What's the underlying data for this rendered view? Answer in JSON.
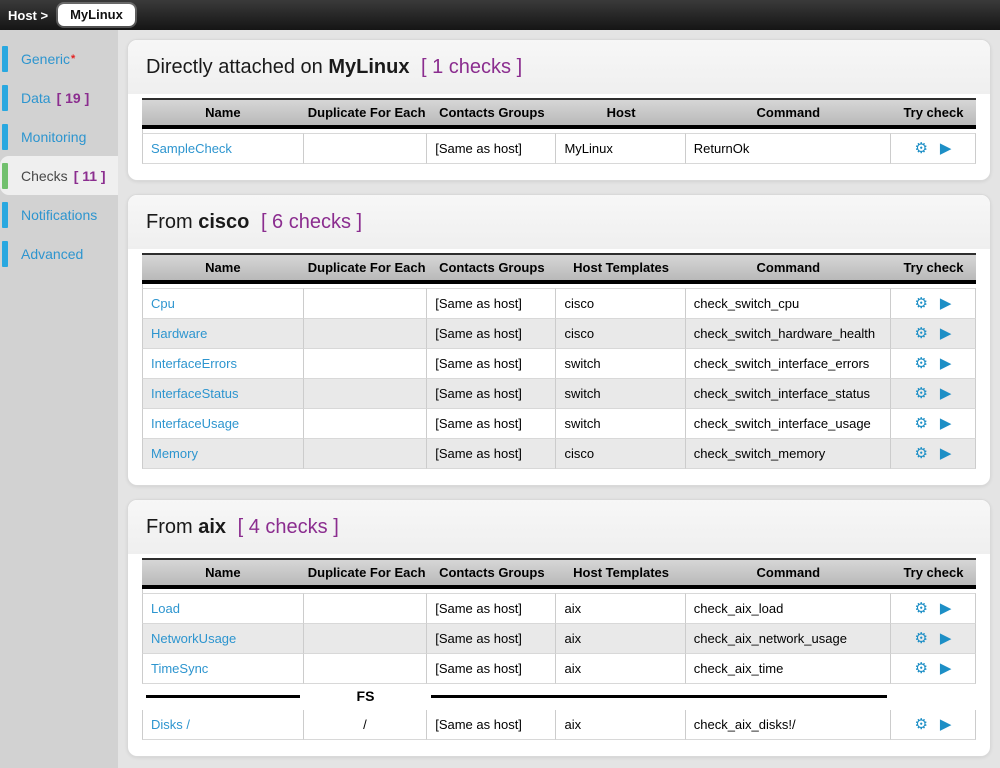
{
  "topbar": {
    "breadcrumb_label": "Host >",
    "host_name": "MyLinux"
  },
  "sidebar": {
    "items": [
      {
        "id": "generic",
        "label": "Generic",
        "marker": "*",
        "selected": false
      },
      {
        "id": "data",
        "label": "Data",
        "count": "[ 19 ]",
        "selected": false
      },
      {
        "id": "monitoring",
        "label": "Monitoring",
        "selected": false
      },
      {
        "id": "checks",
        "label": "Checks",
        "count": "[ 11 ]",
        "selected": true
      },
      {
        "id": "notifications",
        "label": "Notifications",
        "selected": false
      },
      {
        "id": "advanced",
        "label": "Advanced",
        "selected": false
      }
    ]
  },
  "sections": [
    {
      "id": "directly-attached",
      "title_prefix": "Directly attached on",
      "title_name": "MyLinux",
      "title_count": "[ 1 checks ]",
      "columns": [
        "Name",
        "Duplicate For Each",
        "Contacts Groups",
        "Host",
        "Command",
        "Try check"
      ],
      "rows": [
        {
          "name": "SampleCheck",
          "duplicate": "",
          "contacts_groups": "[Same as host]",
          "host": "MyLinux",
          "command": "ReturnOk"
        }
      ]
    },
    {
      "id": "from-cisco",
      "title_prefix": "From",
      "title_name": "cisco",
      "title_count": "[ 6 checks ]",
      "columns": [
        "Name",
        "Duplicate For Each",
        "Contacts Groups",
        "Host Templates",
        "Command",
        "Try check"
      ],
      "rows": [
        {
          "name": "Cpu",
          "duplicate": "",
          "contacts_groups": "[Same as host]",
          "host": "cisco",
          "command": "check_switch_cpu"
        },
        {
          "name": "Hardware",
          "duplicate": "",
          "contacts_groups": "[Same as host]",
          "host": "cisco",
          "command": "check_switch_hardware_health"
        },
        {
          "name": "InterfaceErrors",
          "duplicate": "",
          "contacts_groups": "[Same as host]",
          "host": "switch",
          "command": "check_switch_interface_errors"
        },
        {
          "name": "InterfaceStatus",
          "duplicate": "",
          "contacts_groups": "[Same as host]",
          "host": "switch",
          "command": "check_switch_interface_status"
        },
        {
          "name": "InterfaceUsage",
          "duplicate": "",
          "contacts_groups": "[Same as host]",
          "host": "switch",
          "command": "check_switch_interface_usage"
        },
        {
          "name": "Memory",
          "duplicate": "",
          "contacts_groups": "[Same as host]",
          "host": "cisco",
          "command": "check_switch_memory"
        }
      ]
    },
    {
      "id": "from-aix",
      "title_prefix": "From",
      "title_name": "aix",
      "title_count": "[ 4 checks ]",
      "columns": [
        "Name",
        "Duplicate For Each",
        "Contacts Groups",
        "Host Templates",
        "Command",
        "Try check"
      ],
      "rows": [
        {
          "name": "Load",
          "duplicate": "",
          "contacts_groups": "[Same as host]",
          "host": "aix",
          "command": "check_aix_load"
        },
        {
          "name": "NetworkUsage",
          "duplicate": "",
          "contacts_groups": "[Same as host]",
          "host": "aix",
          "command": "check_aix_network_usage"
        },
        {
          "name": "TimeSync",
          "duplicate": "",
          "contacts_groups": "[Same as host]",
          "host": "aix",
          "command": "check_aix_time"
        },
        {
          "separator_label": "FS"
        },
        {
          "name": "Disks /",
          "duplicate": "/",
          "contacts_groups": "[Same as host]",
          "host": "aix",
          "command": "check_aix_disks!/"
        }
      ]
    }
  ],
  "icons": {
    "gear": "⚙",
    "play": "▶"
  },
  "colors": {
    "accent_purple": "#8b2d8f",
    "link_blue": "#2d95cf",
    "icon_blue": "#1d8fc6",
    "nav_indicator_blue": "#29a8e0",
    "active_indicator_green": "#72c06e",
    "asterisk_red": "#e42222",
    "topbar_dark": "#1a1a1a"
  }
}
